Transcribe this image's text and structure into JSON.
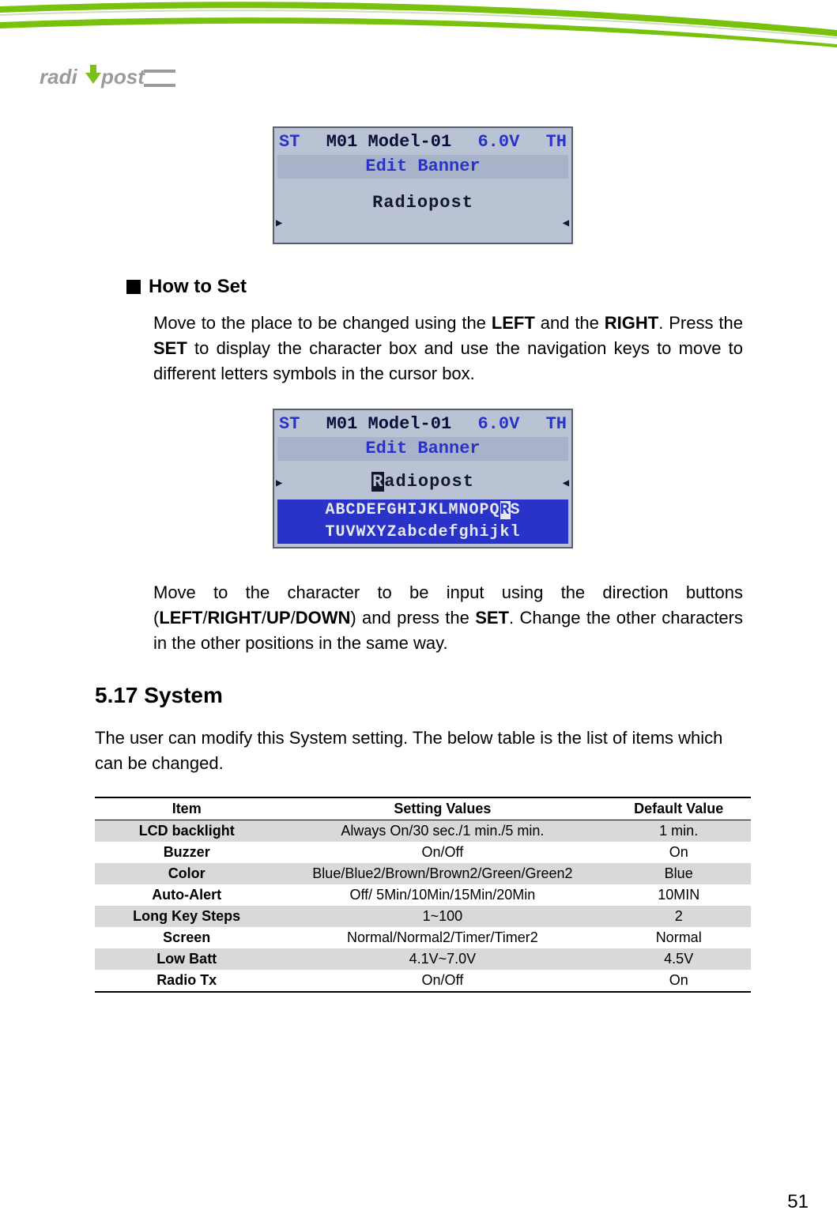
{
  "logo": {
    "text": "radiopost",
    "accent_color": "#7bbf1a",
    "gray": "#9b9b9b"
  },
  "header": {
    "green": "#78c20e",
    "dark_green": "#3f7a07"
  },
  "lcd1": {
    "st": "ST",
    "mid": "M01 Model-01",
    "volt": "6.0V",
    "th": "TH",
    "title": "Edit Banner",
    "body_text": "Radiopost",
    "bg": "#b9c3d4",
    "border": "#5a5f6a",
    "title_bg": "#a8b2c8",
    "blue": "#2933c7",
    "ink": "#14182e"
  },
  "howto": {
    "heading": "How to Set",
    "p1_a": "Move to the place to be changed using the ",
    "p1_left": "LEFT",
    "p1_b": " and the ",
    "p1_right": "RIGHT",
    "p1_c": ". Press the ",
    "p1_set": "SET",
    "p1_d": " to display the character box and use the navigation keys to move to different letters symbols in the cursor box."
  },
  "lcd2": {
    "st": "ST",
    "mid": "M01 Model-01",
    "volt": "6.0V",
    "th": "TH",
    "title": "Edit Banner",
    "body_pre": "",
    "body_cursor": "R",
    "body_post": "adiopost",
    "alpha1_pre": "ABCDEFGHIJKLMNOPQ",
    "alpha1_hl": "R",
    "alpha1_post": "S",
    "alpha2": "TUVWXYZabcdefghijkl"
  },
  "para2": {
    "a": "Move to the character to be input using the direction buttons (",
    "left": "LEFT",
    "s1": "/",
    "right": "RIGHT",
    "s2": "/",
    "up": "UP",
    "s3": "/",
    "down": "DOWN",
    "b": ") and press the ",
    "set": "SET",
    "c": ". Change the other characters in the other positions in the same way."
  },
  "section": {
    "title": "5.17 System",
    "intro": "The user can modify this System setting.  The below table is the list of items which can be changed."
  },
  "table": {
    "columns": [
      "Item",
      "Setting Values",
      "Default Value"
    ],
    "col_widths": [
      "28%",
      "50%",
      "22%"
    ],
    "shade_color": "#d9d9d9",
    "rows": [
      {
        "item": "LCD backlight",
        "values": "Always On/30 sec./1 min./5 min.",
        "default": "1 min.",
        "shade": true
      },
      {
        "item": "Buzzer",
        "values": "On/Off",
        "default": "On",
        "shade": false
      },
      {
        "item": "Color",
        "values": "Blue/Blue2/Brown/Brown2/Green/Green2",
        "default": "Blue",
        "shade": true
      },
      {
        "item": "Auto-Alert",
        "values": "Off/ 5Min/10Min/15Min/20Min",
        "default": "10MIN",
        "shade": false
      },
      {
        "item": "Long Key Steps",
        "values": "1~100",
        "default": "2",
        "shade": true
      },
      {
        "item": "Screen",
        "values": "Normal/Normal2/Timer/Timer2",
        "default": "Normal",
        "shade": false
      },
      {
        "item": "Low Batt",
        "values": "4.1V~7.0V",
        "default": "4.5V",
        "shade": true
      },
      {
        "item": "Radio Tx",
        "values": "On/Off",
        "default": "On",
        "shade": false
      }
    ]
  },
  "page_number": "51"
}
